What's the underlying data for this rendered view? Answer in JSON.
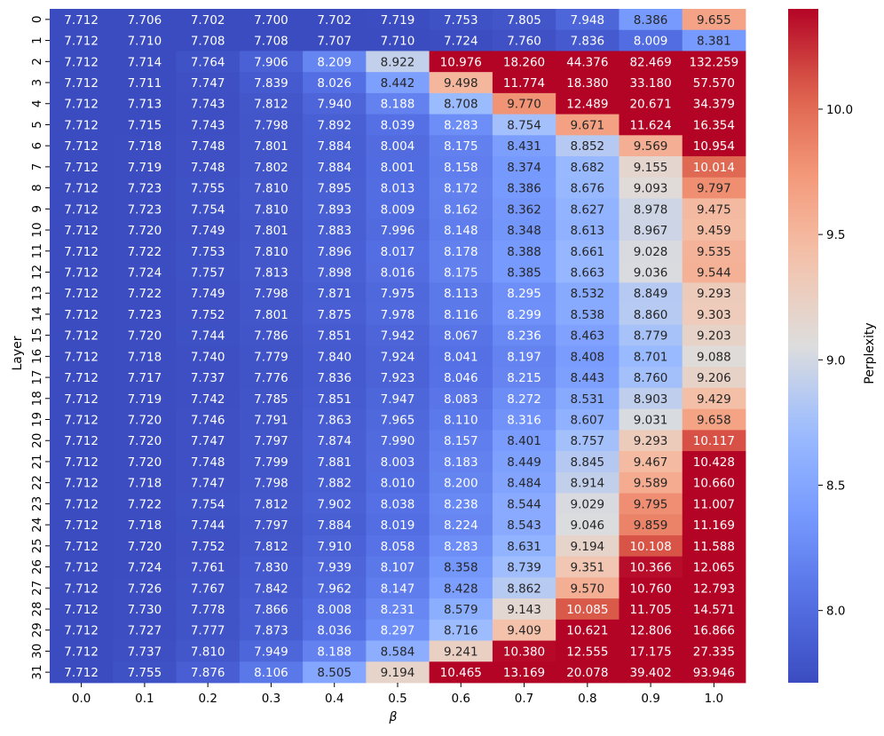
{
  "chart_data": {
    "type": "heatmap",
    "xlabel": "β",
    "ylabel": "Layer",
    "x_ticks": [
      "0.0",
      "0.1",
      "0.2",
      "0.3",
      "0.4",
      "0.5",
      "0.6",
      "0.7",
      "0.8",
      "0.9",
      "1.0"
    ],
    "y_ticks": [
      "0",
      "1",
      "2",
      "3",
      "4",
      "5",
      "6",
      "7",
      "8",
      "9",
      "10",
      "11",
      "12",
      "13",
      "14",
      "15",
      "16",
      "17",
      "18",
      "19",
      "20",
      "21",
      "22",
      "23",
      "24",
      "25",
      "26",
      "27",
      "28",
      "29",
      "30",
      "31"
    ],
    "colormap": "coolwarm",
    "color_range": [
      7.712,
      10.4
    ],
    "colorbar_label": "Perplexity",
    "colorbar_ticks": [
      "8.0",
      "8.5",
      "9.0",
      "9.5",
      "10.0"
    ],
    "values": [
      [
        "7.712",
        "7.706",
        "7.702",
        "7.700",
        "7.702",
        "7.719",
        "7.753",
        "7.805",
        "7.948",
        "8.386",
        "9.655"
      ],
      [
        "7.712",
        "7.710",
        "7.708",
        "7.708",
        "7.707",
        "7.710",
        "7.724",
        "7.760",
        "7.836",
        "8.009",
        "8.381"
      ],
      [
        "7.712",
        "7.714",
        "7.764",
        "7.906",
        "8.209",
        "8.922",
        "10.976",
        "18.260",
        "44.376",
        "82.469",
        "132.259"
      ],
      [
        "7.712",
        "7.711",
        "7.747",
        "7.839",
        "8.026",
        "8.442",
        "9.498",
        "11.774",
        "18.380",
        "33.180",
        "57.570"
      ],
      [
        "7.712",
        "7.713",
        "7.743",
        "7.812",
        "7.940",
        "8.188",
        "8.708",
        "9.770",
        "12.489",
        "20.671",
        "34.379"
      ],
      [
        "7.712",
        "7.715",
        "7.743",
        "7.798",
        "7.892",
        "8.039",
        "8.283",
        "8.754",
        "9.671",
        "11.624",
        "16.354"
      ],
      [
        "7.712",
        "7.718",
        "7.748",
        "7.801",
        "7.884",
        "8.004",
        "8.175",
        "8.431",
        "8.852",
        "9.569",
        "10.954"
      ],
      [
        "7.712",
        "7.719",
        "7.748",
        "7.802",
        "7.884",
        "8.001",
        "8.158",
        "8.374",
        "8.682",
        "9.155",
        "10.014"
      ],
      [
        "7.712",
        "7.723",
        "7.755",
        "7.810",
        "7.895",
        "8.013",
        "8.172",
        "8.386",
        "8.676",
        "9.093",
        "9.797"
      ],
      [
        "7.712",
        "7.723",
        "7.754",
        "7.810",
        "7.893",
        "8.009",
        "8.162",
        "8.362",
        "8.627",
        "8.978",
        "9.475"
      ],
      [
        "7.712",
        "7.720",
        "7.749",
        "7.801",
        "7.883",
        "7.996",
        "8.148",
        "8.348",
        "8.613",
        "8.967",
        "9.459"
      ],
      [
        "7.712",
        "7.722",
        "7.753",
        "7.810",
        "7.896",
        "8.017",
        "8.178",
        "8.388",
        "8.661",
        "9.028",
        "9.535"
      ],
      [
        "7.712",
        "7.724",
        "7.757",
        "7.813",
        "7.898",
        "8.016",
        "8.175",
        "8.385",
        "8.663",
        "9.036",
        "9.544"
      ],
      [
        "7.712",
        "7.722",
        "7.749",
        "7.798",
        "7.871",
        "7.975",
        "8.113",
        "8.295",
        "8.532",
        "8.849",
        "9.293"
      ],
      [
        "7.712",
        "7.723",
        "7.752",
        "7.801",
        "7.875",
        "7.978",
        "8.116",
        "8.299",
        "8.538",
        "8.860",
        "9.303"
      ],
      [
        "7.712",
        "7.720",
        "7.744",
        "7.786",
        "7.851",
        "7.942",
        "8.067",
        "8.236",
        "8.463",
        "8.779",
        "9.203"
      ],
      [
        "7.712",
        "7.718",
        "7.740",
        "7.779",
        "7.840",
        "7.924",
        "8.041",
        "8.197",
        "8.408",
        "8.701",
        "9.088"
      ],
      [
        "7.712",
        "7.717",
        "7.737",
        "7.776",
        "7.836",
        "7.923",
        "8.046",
        "8.215",
        "8.443",
        "8.760",
        "9.206"
      ],
      [
        "7.712",
        "7.719",
        "7.742",
        "7.785",
        "7.851",
        "7.947",
        "8.083",
        "8.272",
        "8.531",
        "8.903",
        "9.429"
      ],
      [
        "7.712",
        "7.720",
        "7.746",
        "7.791",
        "7.863",
        "7.965",
        "8.110",
        "8.316",
        "8.607",
        "9.031",
        "9.658"
      ],
      [
        "7.712",
        "7.720",
        "7.747",
        "7.797",
        "7.874",
        "7.990",
        "8.157",
        "8.401",
        "8.757",
        "9.293",
        "10.117"
      ],
      [
        "7.712",
        "7.720",
        "7.748",
        "7.799",
        "7.881",
        "8.003",
        "8.183",
        "8.449",
        "8.845",
        "9.467",
        "10.428"
      ],
      [
        "7.712",
        "7.718",
        "7.747",
        "7.798",
        "7.882",
        "8.010",
        "8.200",
        "8.484",
        "8.914",
        "9.589",
        "10.660"
      ],
      [
        "7.712",
        "7.722",
        "7.754",
        "7.812",
        "7.902",
        "8.038",
        "8.238",
        "8.544",
        "9.029",
        "9.795",
        "11.007"
      ],
      [
        "7.712",
        "7.718",
        "7.744",
        "7.797",
        "7.884",
        "8.019",
        "8.224",
        "8.543",
        "9.046",
        "9.859",
        "11.169"
      ],
      [
        "7.712",
        "7.720",
        "7.752",
        "7.812",
        "7.910",
        "8.058",
        "8.283",
        "8.631",
        "9.194",
        "10.108",
        "11.588"
      ],
      [
        "7.712",
        "7.724",
        "7.761",
        "7.830",
        "7.939",
        "8.107",
        "8.358",
        "8.739",
        "9.351",
        "10.366",
        "12.065"
      ],
      [
        "7.712",
        "7.726",
        "7.767",
        "7.842",
        "7.962",
        "8.147",
        "8.428",
        "8.862",
        "9.570",
        "10.760",
        "12.793"
      ],
      [
        "7.712",
        "7.730",
        "7.778",
        "7.866",
        "8.008",
        "8.231",
        "8.579",
        "9.143",
        "10.085",
        "11.705",
        "14.571"
      ],
      [
        "7.712",
        "7.727",
        "7.777",
        "7.873",
        "8.036",
        "8.297",
        "8.716",
        "9.409",
        "10.621",
        "12.806",
        "16.866"
      ],
      [
        "7.712",
        "7.737",
        "7.810",
        "7.949",
        "8.188",
        "8.584",
        "9.241",
        "10.380",
        "12.555",
        "17.175",
        "27.335"
      ],
      [
        "7.712",
        "7.755",
        "7.876",
        "8.106",
        "8.505",
        "9.194",
        "10.465",
        "13.169",
        "20.078",
        "39.402",
        "93.946"
      ]
    ]
  }
}
